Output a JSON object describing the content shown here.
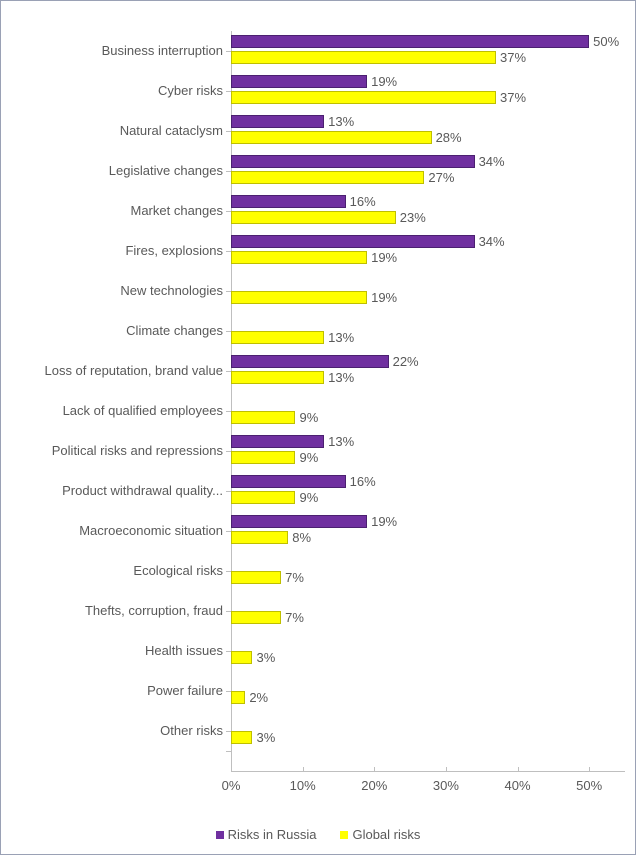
{
  "chart": {
    "type": "grouped-horizontal-bar",
    "background_color": "#ffffff",
    "border_color": "#9aa1b5",
    "label_fontsize": 13,
    "label_color": "#595959",
    "axis_line_color": "#bfbfbf",
    "x_axis": {
      "min": 0,
      "max": 55,
      "ticks": [
        0,
        10,
        20,
        30,
        40,
        50
      ],
      "tick_labels": [
        "0%",
        "10%",
        "20%",
        "30%",
        "40%",
        "50%"
      ]
    },
    "series": [
      {
        "key": "russia",
        "name": "Risks in Russia",
        "fill_color": "#7030a0",
        "border_color": "#4b2070"
      },
      {
        "key": "global",
        "name": "Global risks",
        "fill_color": "#ffff00",
        "border_color": "#bfbf00"
      }
    ],
    "categories": [
      {
        "label": "Business interruption",
        "russia": 50,
        "global": 37
      },
      {
        "label": "Cyber risks",
        "russia": 19,
        "global": 37
      },
      {
        "label": "Natural cataclysm",
        "russia": 13,
        "global": 28
      },
      {
        "label": "Legislative changes",
        "russia": 34,
        "global": 27
      },
      {
        "label": "Market changes",
        "russia": 16,
        "global": 23
      },
      {
        "label": "Fires, explosions",
        "russia": 34,
        "global": 19
      },
      {
        "label": "New technologies",
        "russia": null,
        "global": 19
      },
      {
        "label": "Climate changes",
        "russia": null,
        "global": 13
      },
      {
        "label": "Loss of reputation, brand value",
        "russia": 22,
        "global": 13
      },
      {
        "label": "Lack of qualified employees",
        "russia": null,
        "global": 9
      },
      {
        "label": "Political risks and repressions",
        "russia": 13,
        "global": 9
      },
      {
        "label": "Product withdrawal  quality...",
        "russia": 16,
        "global": 9
      },
      {
        "label": "Macroeconomic situation",
        "russia": 19,
        "global": 8
      },
      {
        "label": "Ecological risks",
        "russia": null,
        "global": 7
      },
      {
        "label": "Thefts, corruption, fraud",
        "russia": null,
        "global": 7
      },
      {
        "label": "Health issues",
        "russia": null,
        "global": 3
      },
      {
        "label": "Power failure",
        "russia": null,
        "global": 2
      },
      {
        "label": "Other risks",
        "russia": null,
        "global": 3
      }
    ]
  }
}
